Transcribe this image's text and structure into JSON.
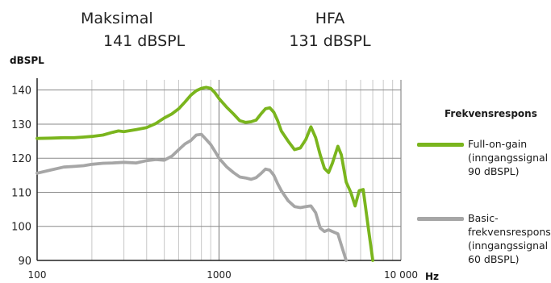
{
  "header": {
    "left_label": "Maksimal",
    "left_value": "141  dBSPL",
    "right_label": "HFA",
    "right_value": "131  dBSPL"
  },
  "chart_data": {
    "type": "line",
    "title": "",
    "ylabel": "dBSPL",
    "xlabel": "Hz",
    "x_scale": "log",
    "xlim": [
      100,
      10000
    ],
    "ylim": [
      90,
      143
    ],
    "grid": true,
    "y_ticks": [
      90,
      100,
      110,
      120,
      130,
      140
    ],
    "x_tick_labels": [
      "100",
      "1000",
      "10 000"
    ],
    "legend_title": "Frekvensrespons",
    "legend_position": "right",
    "series": [
      {
        "name": "Full-on-gain (inngangssignal 90 dBSPL)",
        "color": "#7ab51d",
        "x": [
          100,
          120,
          140,
          160,
          180,
          200,
          230,
          260,
          280,
          300,
          350,
          400,
          450,
          500,
          550,
          600,
          650,
          700,
          750,
          800,
          850,
          900,
          950,
          1000,
          1100,
          1200,
          1300,
          1400,
          1500,
          1600,
          1700,
          1800,
          1900,
          2000,
          2100,
          2200,
          2400,
          2600,
          2800,
          3000,
          3200,
          3400,
          3600,
          3800,
          4000,
          4200,
          4500,
          4700,
          5000,
          5300,
          5600,
          5900,
          6200,
          6600,
          7000
        ],
        "y": [
          125.8,
          125.9,
          126.0,
          126.0,
          126.2,
          126.4,
          126.8,
          127.6,
          128.0,
          127.8,
          128.4,
          129.0,
          130.2,
          131.8,
          133.0,
          134.5,
          136.5,
          138.5,
          139.8,
          140.5,
          140.8,
          140.5,
          139.2,
          137.5,
          135.0,
          133.0,
          131.0,
          130.5,
          130.7,
          131.2,
          133.0,
          134.5,
          134.8,
          133.5,
          131.0,
          128.0,
          125.0,
          122.5,
          123.0,
          125.5,
          129.2,
          126.0,
          121.0,
          117.0,
          115.8,
          118.5,
          123.5,
          121.0,
          113.0,
          110.0,
          106.0,
          110.5,
          110.8,
          100.0,
          90.0
        ]
      },
      {
        "name": "Basic-frekvensrespons (inngangssignal 60 dBSPL)",
        "color": "#a6a6a6",
        "x": [
          100,
          120,
          140,
          160,
          180,
          200,
          230,
          260,
          300,
          350,
          400,
          450,
          500,
          550,
          600,
          650,
          700,
          750,
          800,
          850,
          900,
          950,
          1000,
          1100,
          1200,
          1300,
          1400,
          1500,
          1600,
          1700,
          1800,
          1900,
          2000,
          2100,
          2200,
          2400,
          2600,
          2800,
          3000,
          3200,
          3400,
          3600,
          3800,
          4000,
          4200,
          4500,
          4700,
          5000
        ],
        "y": [
          115.6,
          116.6,
          117.4,
          117.6,
          117.8,
          118.2,
          118.5,
          118.6,
          118.8,
          118.6,
          119.3,
          119.6,
          119.4,
          120.6,
          122.5,
          124.2,
          125.2,
          126.8,
          127.0,
          125.5,
          124.0,
          122.0,
          120.0,
          117.5,
          115.8,
          114.5,
          114.2,
          113.8,
          114.3,
          115.5,
          116.8,
          116.5,
          115.0,
          112.5,
          110.5,
          107.5,
          105.8,
          105.5,
          105.8,
          106.0,
          104.0,
          99.5,
          98.5,
          99.0,
          98.5,
          97.8,
          94.5,
          90.0
        ]
      }
    ]
  }
}
